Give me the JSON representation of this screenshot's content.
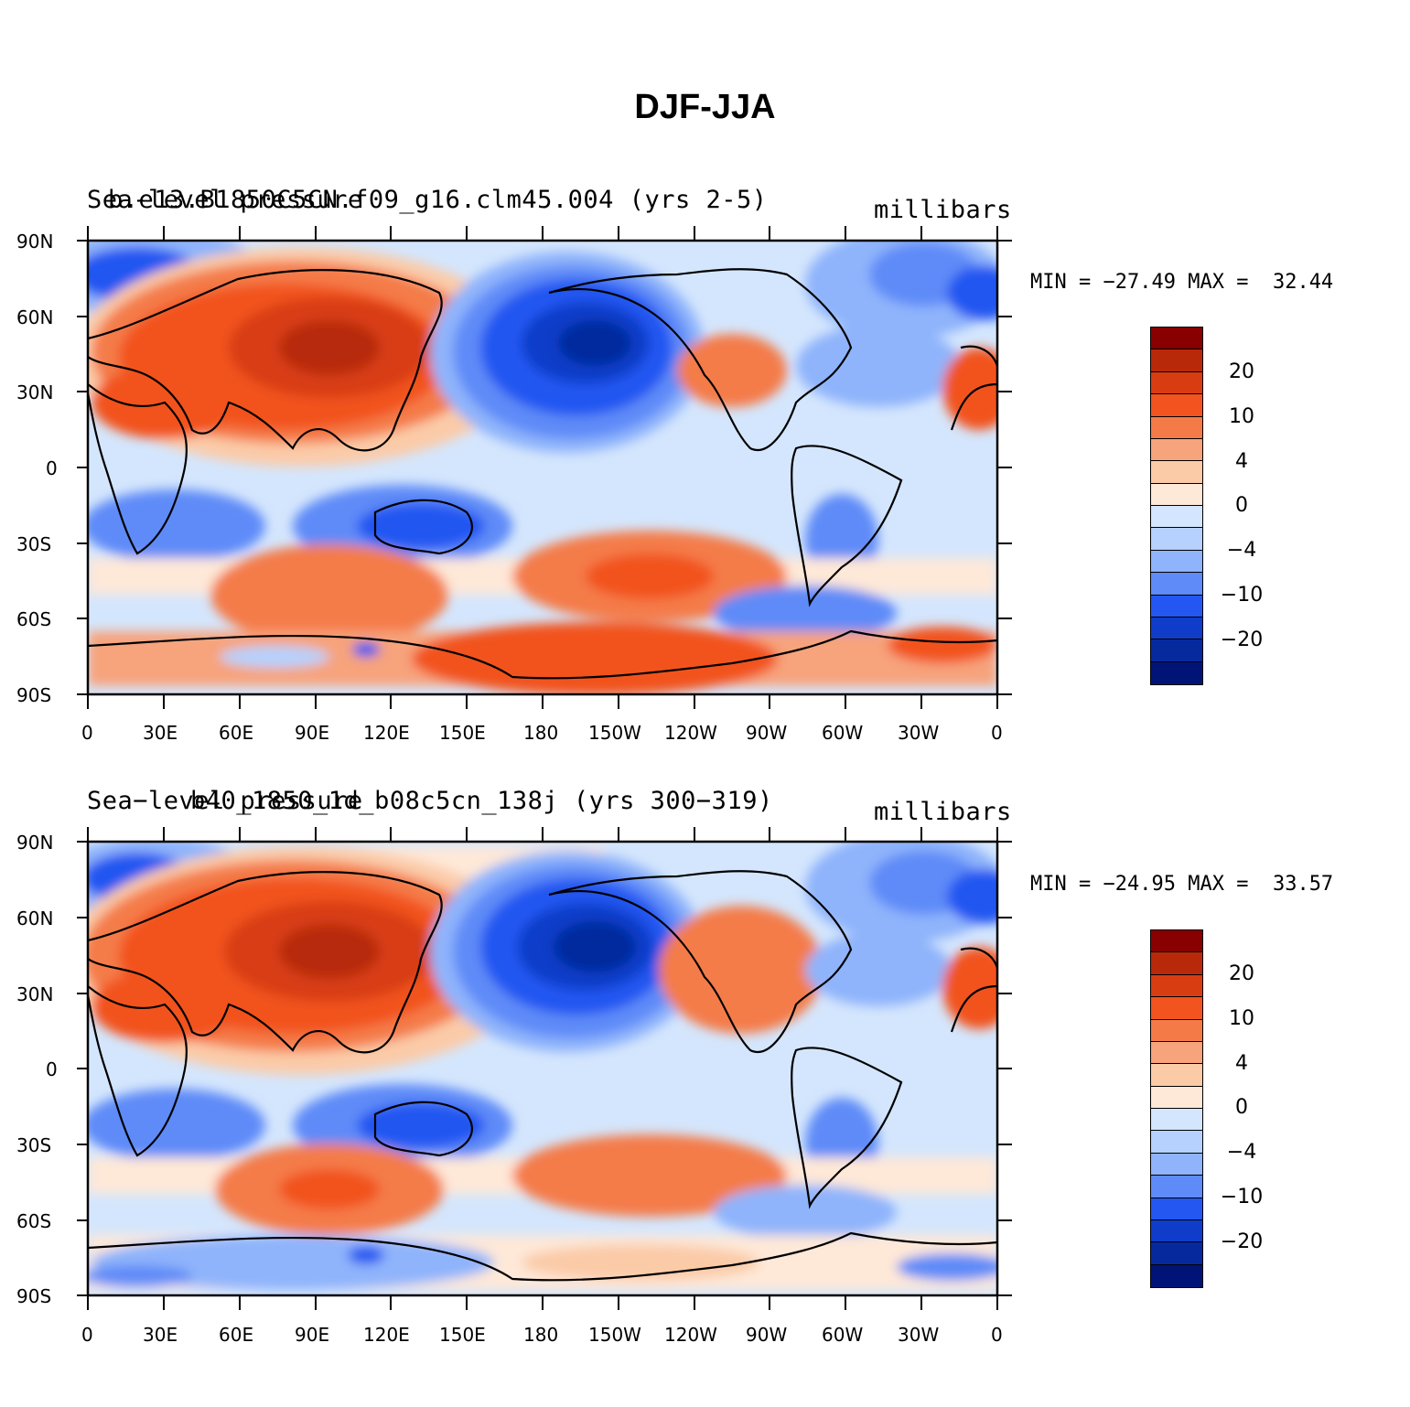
{
  "title": "DJF-JJA",
  "colorbar": {
    "colors": [
      "#880000",
      "#b8290a",
      "#d83d12",
      "#f2531f",
      "#f47b48",
      "#f7a37c",
      "#fbcba8",
      "#fee8d8",
      "#d4e6fd",
      "#b6d1fd",
      "#8fb4fb",
      "#5f8bf8",
      "#2457f1",
      "#0f3dc9",
      "#062a9d",
      "#001478"
    ],
    "labels": [
      "20",
      "10",
      "4",
      "0",
      "−4",
      "−10",
      "−20"
    ]
  },
  "axes": {
    "y_ticks": [
      "90N",
      "60N",
      "30N",
      "0",
      "30S",
      "60S",
      "90S"
    ],
    "x_ticks": [
      "0",
      "30E",
      "60E",
      "90E",
      "120E",
      "150E",
      "180",
      "150W",
      "120W",
      "90W",
      "60W",
      "30W",
      "0"
    ]
  },
  "panels": [
    {
      "left_title": "Sea-level pressure",
      "center_title": "b.e13.B1850C5CN.f09_g16.clm45.004 (yrs 2-5)",
      "right_title": "millibars",
      "min_label": "MIN =",
      "min_value": "−27.49",
      "max_label": "MAX =",
      "max_value": "32.44"
    },
    {
      "left_title": "Sea−level pressure",
      "center_title": "b40_1850_1d_b08c5cn_138j (yrs 300−319)",
      "right_title": "millibars",
      "min_label": "MIN =",
      "min_value": "−24.95",
      "max_label": "MAX =",
      "max_value": "33.57"
    }
  ]
}
